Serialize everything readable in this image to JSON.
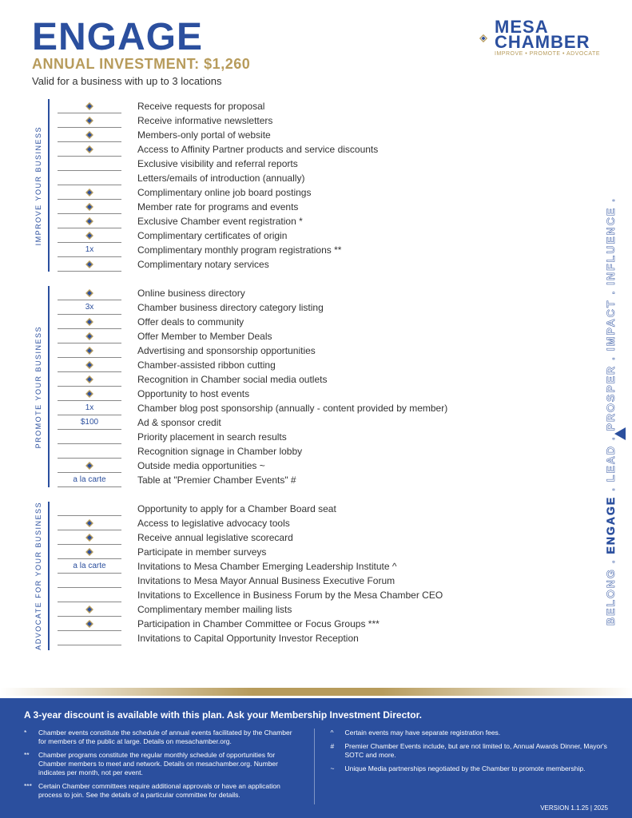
{
  "header": {
    "title": "ENGAGE",
    "subtitle": "ANNUAL INVESTMENT: $1,260",
    "valid": "Valid for a business with up to 3 locations",
    "logo_line1": "MESA",
    "logo_line2": "CHAMBER",
    "logo_tagline": "IMPROVE • PROMOTE • ADVOCATE"
  },
  "colors": {
    "blue": "#2b4f9e",
    "gold": "#b79b5b",
    "text": "#333333"
  },
  "pillars": "BELONG . ENGAGE . LEAD . PROSPER . IMPACT . INFLUENCE .",
  "pillars_highlight": "ENGAGE",
  "sections": [
    {
      "label": "IMPROVE YOUR BUSINESS",
      "rows": [
        {
          "badge": "diamond",
          "text": "Receive requests for proposal"
        },
        {
          "badge": "diamond",
          "text": "Receive informative newsletters"
        },
        {
          "badge": "diamond",
          "text": "Members-only portal of website"
        },
        {
          "badge": "diamond",
          "text": "Access to Affinity Partner products and service discounts"
        },
        {
          "badge": "",
          "text": "Exclusive visibility and referral reports"
        },
        {
          "badge": "",
          "text": "Letters/emails of introduction (annually)"
        },
        {
          "badge": "diamond",
          "text": "Complimentary online job board postings"
        },
        {
          "badge": "diamond",
          "text": "Member rate for programs and events"
        },
        {
          "badge": "diamond",
          "text": "Exclusive Chamber event registration *"
        },
        {
          "badge": "diamond",
          "text": "Complimentary certificates of origin"
        },
        {
          "badge": "1x",
          "text": "Complimentary monthly program registrations **"
        },
        {
          "badge": "diamond",
          "text": "Complimentary notary services"
        }
      ]
    },
    {
      "label": "PROMOTE YOUR BUSINESS",
      "rows": [
        {
          "badge": "diamond",
          "text": "Online business directory"
        },
        {
          "badge": "3x",
          "text": "Chamber business directory category listing"
        },
        {
          "badge": "diamond",
          "text": "Offer deals to community"
        },
        {
          "badge": "diamond",
          "text": "Offer Member to Member Deals"
        },
        {
          "badge": "diamond",
          "text": "Advertising and sponsorship opportunities"
        },
        {
          "badge": "diamond",
          "text": "Chamber-assisted ribbon cutting"
        },
        {
          "badge": "diamond",
          "text": "Recognition in Chamber social media outlets"
        },
        {
          "badge": "diamond",
          "text": "Opportunity to host events"
        },
        {
          "badge": "1x",
          "text": "Chamber blog post sponsorship (annually - content provided by member)"
        },
        {
          "badge": "$100",
          "text": "Ad & sponsor credit"
        },
        {
          "badge": "",
          "text": "Priority placement in search results"
        },
        {
          "badge": "",
          "text": "Recognition signage in Chamber lobby"
        },
        {
          "badge": "diamond",
          "text": "Outside media opportunities ~"
        },
        {
          "badge": "a la carte",
          "text": "Table at \"Premier Chamber Events\" #"
        }
      ]
    },
    {
      "label": "ADVOCATE FOR YOUR BUSINESS",
      "rows": [
        {
          "badge": "",
          "text": "Opportunity to apply for a Chamber Board seat"
        },
        {
          "badge": "diamond",
          "text": "Access to legislative advocacy tools"
        },
        {
          "badge": "diamond",
          "text": "Receive annual legislative scorecard"
        },
        {
          "badge": "diamond",
          "text": "Participate in member surveys"
        },
        {
          "badge": "a la carte",
          "text": "Invitations to Mesa Chamber Emerging Leadership Institute ^"
        },
        {
          "badge": "",
          "text": "Invitations to Mesa Mayor Annual Business Executive Forum"
        },
        {
          "badge": "",
          "text": "Invitations to Excellence in Business Forum by the Mesa Chamber CEO"
        },
        {
          "badge": "diamond",
          "text": "Complimentary member mailing lists"
        },
        {
          "badge": "diamond",
          "text": "Participation in Chamber Committee or Focus Groups ***"
        },
        {
          "badge": "",
          "text": "Invitations to Capital Opportunity Investor Reception"
        }
      ]
    }
  ],
  "footer": {
    "headline": "A 3-year discount is available with this plan. Ask your Membership Investment Director.",
    "left": [
      {
        "mark": "*",
        "text": "Chamber events constitute the schedule of annual events facilitated by the Chamber for members of the public at large. Details on mesachamber.org."
      },
      {
        "mark": "**",
        "text": "Chamber programs constitute the regular monthly schedule of opportunities for Chamber members to meet and network. Details on mesachamber.org. Number indicates per month, not per event."
      },
      {
        "mark": "***",
        "text": "Certain Chamber committees require additional approvals or have an application process to join. See the details of a particular committee for details."
      }
    ],
    "right": [
      {
        "mark": "^",
        "text": "Certain events may have separate registration fees."
      },
      {
        "mark": "#",
        "text": "Premier Chamber Events include, but are not limited to, Annual Awards Dinner, Mayor's SOTC and more."
      },
      {
        "mark": "~",
        "text": "Unique Media partnerships negotiated by the Chamber to promote membership."
      }
    ],
    "version": "VERSION 1.1.25 | 2025"
  }
}
